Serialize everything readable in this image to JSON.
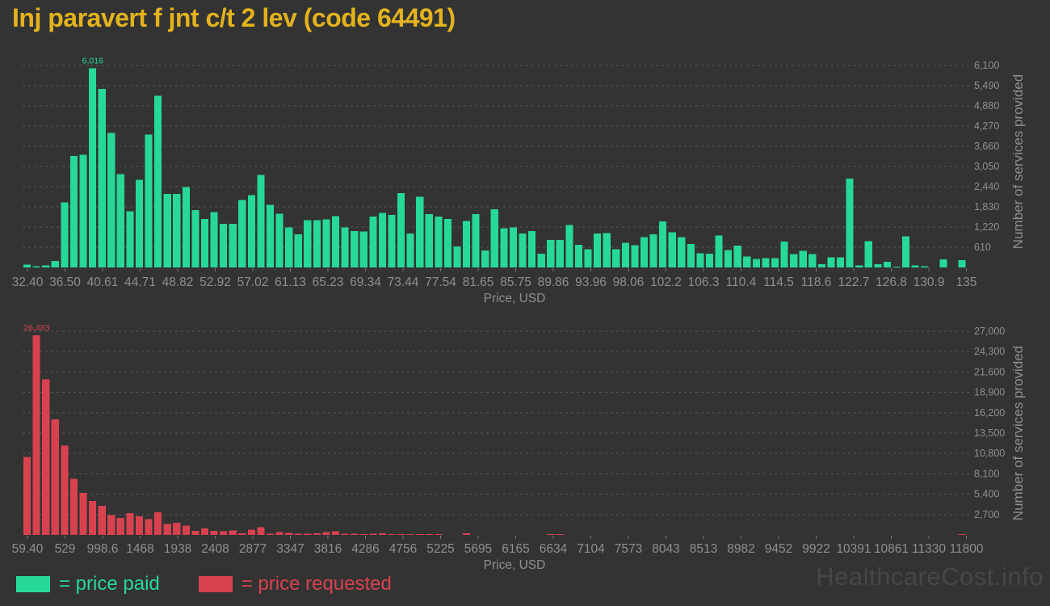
{
  "title": "Inj paravert f jnt c/t 2 lev (code 64491)",
  "watermark": "HealthcareCost.info",
  "legend": {
    "paid_label": "= price paid",
    "requested_label": "= price requested"
  },
  "colors": {
    "background": "#333333",
    "paid": "#26d997",
    "requested": "#d8424f",
    "title": "#e3b31c",
    "axis_text": "#8f8f8f",
    "gridline": "#575757",
    "tick_mark": "#7a7a7a",
    "watermark": "#474747"
  },
  "chart_data": [
    {
      "type": "bar",
      "name": "price-paid-histogram",
      "series_label": "price paid",
      "xlabel": "Price, USD",
      "ylabel": "Number of services provided",
      "xlim": [
        32.4,
        135
      ],
      "ylim": [
        0,
        6100
      ],
      "grid": "dashed-horizontal",
      "y_axis_side": "right",
      "x_tick_labels": [
        "32.40",
        "36.50",
        "40.61",
        "44.71",
        "48.82",
        "52.92",
        "57.02",
        "61.13",
        "65.23",
        "69.34",
        "73.44",
        "77.54",
        "81.65",
        "85.75",
        "89.86",
        "93.96",
        "98.06",
        "102.2",
        "106.3",
        "110.4",
        "114.5",
        "118.6",
        "122.7",
        "126.8",
        "130.9",
        "135"
      ],
      "y_tick_labels": [
        "610",
        "1,220",
        "1,830",
        "2,440",
        "3,050",
        "3,660",
        "4,270",
        "4,880",
        "5,490",
        "6,100"
      ],
      "y_tick_values": [
        610,
        1220,
        1830,
        2440,
        3050,
        3660,
        4270,
        4880,
        5490,
        6100
      ],
      "peak_label": "6,016",
      "peak_value": 6016,
      "values": [
        80,
        40,
        60,
        200,
        1960,
        3370,
        3410,
        6016,
        5390,
        4065,
        2815,
        1690,
        2650,
        4015,
        5185,
        2220,
        2220,
        2425,
        1730,
        1470,
        1675,
        1320,
        1320,
        2040,
        2180,
        2800,
        1895,
        1620,
        1210,
        1000,
        1430,
        1430,
        1450,
        1550,
        1210,
        1100,
        1080,
        1535,
        1650,
        1590,
        2245,
        1020,
        2140,
        1615,
        1535,
        1470,
        640,
        1405,
        1610,
        515,
        1755,
        1185,
        1210,
        1020,
        1100,
        410,
        833,
        833,
        1280,
        680,
        555,
        1020,
        1040,
        555,
        750,
        670,
        915,
        1005,
        1390,
        1060,
        915,
        710,
        425,
        410,
        965,
        530,
        655,
        325,
        260,
        285,
        285,
        775,
        408,
        505,
        408,
        100,
        300,
        300,
        2680,
        65,
        790,
        100,
        165,
        25,
        940,
        65,
        40,
        0,
        245,
        0,
        220
      ]
    },
    {
      "type": "bar",
      "name": "price-requested-histogram",
      "series_label": "price requested",
      "xlabel": "Price, USD",
      "ylabel": "Number of services provided",
      "xlim": [
        59.4,
        11800
      ],
      "ylim": [
        0,
        27000
      ],
      "grid": "dashed-horizontal",
      "y_axis_side": "right",
      "x_tick_labels": [
        "59.40",
        "529",
        "998.6",
        "1468",
        "1938",
        "2408",
        "2877",
        "3347",
        "3816",
        "4286",
        "4756",
        "5225",
        "5695",
        "6165",
        "6634",
        "7104",
        "7573",
        "8043",
        "8513",
        "8982",
        "9452",
        "9922",
        "10391",
        "10861",
        "11330",
        "11800"
      ],
      "y_tick_labels": [
        "2,700",
        "5,400",
        "8,100",
        "10,800",
        "13,500",
        "16,200",
        "18,900",
        "21,600",
        "24,300",
        "27,000"
      ],
      "y_tick_values": [
        2700,
        5400,
        8100,
        10800,
        13500,
        16200,
        18900,
        21600,
        24300,
        27000
      ],
      "peak_label": "26,483",
      "peak_value": 26483,
      "values": [
        10330,
        26483,
        20620,
        15310,
        11830,
        7460,
        5560,
        4480,
        3835,
        2620,
        2260,
        2870,
        2440,
        2080,
        2980,
        1430,
        1615,
        1255,
        540,
        850,
        540,
        465,
        610,
        200,
        700,
        1000,
        140,
        390,
        250,
        180,
        145,
        215,
        360,
        465,
        145,
        140,
        100,
        150,
        200,
        90,
        90,
        100,
        90,
        80,
        60,
        0,
        0,
        200,
        0,
        0,
        0,
        0,
        0,
        0,
        0,
        0,
        60,
        70,
        0,
        0,
        0,
        0,
        0,
        0,
        0,
        0,
        0,
        0,
        0,
        0,
        0,
        0,
        0,
        0,
        0,
        0,
        0,
        0,
        0,
        0,
        0,
        0,
        0,
        0,
        0,
        0,
        0,
        0,
        0,
        0,
        0,
        0,
        0,
        0,
        0,
        0,
        0,
        0,
        0,
        0,
        120
      ]
    }
  ]
}
